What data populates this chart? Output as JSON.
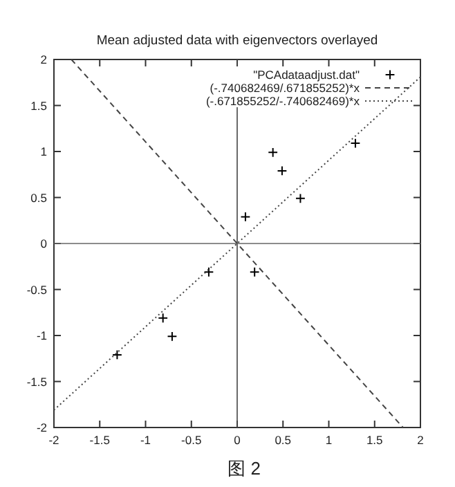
{
  "chart_data": {
    "type": "scatter",
    "title": "Mean adjusted data with eigenvectors overlayed",
    "xlim": [
      -2,
      2
    ],
    "ylim": [
      -2,
      2
    ],
    "xticks": [
      -2,
      -1.5,
      -1,
      -0.5,
      0,
      0.5,
      1,
      1.5,
      2
    ],
    "yticks": [
      -2,
      -1.5,
      -1,
      -0.5,
      0,
      0.5,
      1,
      1.5,
      2
    ],
    "legend": "top right",
    "grid": false,
    "series": [
      {
        "name": "\"PCAdataadjust.dat\"",
        "marker": "cross",
        "color": "#000000",
        "x": [
          0.69,
          -1.31,
          0.39,
          0.09,
          1.29,
          0.49,
          0.19,
          -0.81,
          -0.31,
          -0.71
        ],
        "values": [
          0.49,
          -1.21,
          0.99,
          0.29,
          1.09,
          0.79,
          -0.31,
          -0.81,
          -0.31,
          -1.01
        ]
      },
      {
        "name": "(-.740682469/.671855252)*x",
        "type": "line",
        "marker": "none",
        "line_style": "dashed",
        "color": "#444444",
        "x": [
          -1.81,
          1.81
        ],
        "values": [
          2,
          -2
        ]
      },
      {
        "name": "(-.671855252/-.740682469)*x",
        "type": "line",
        "marker": "none",
        "line_style": "dotted",
        "color": "#444444",
        "x": [
          -2,
          2
        ],
        "values": [
          -1.81,
          1.81
        ]
      }
    ],
    "ref_lines": [
      {
        "axis": "x",
        "value": 0,
        "color": "#444444"
      },
      {
        "axis": "y",
        "value": 0,
        "color": "#666666"
      }
    ],
    "annotations": [
      "图 2"
    ]
  }
}
